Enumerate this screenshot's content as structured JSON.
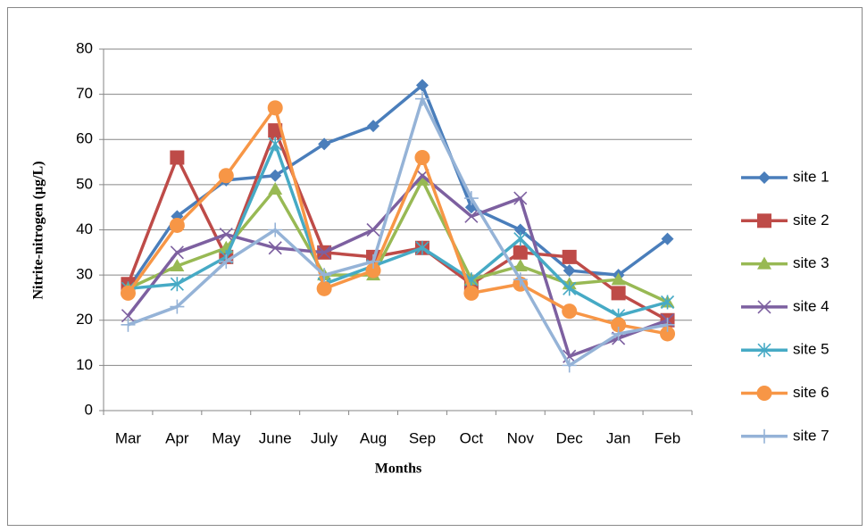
{
  "chart_data": {
    "type": "line",
    "x_label": "Months",
    "y_label": "Nitrite-nitrogen (µg/L)",
    "categories": [
      "Mar",
      "Apr",
      "May",
      "June",
      "July",
      "Aug",
      "Sep",
      "Oct",
      "Nov",
      "Dec",
      "Jan",
      "Feb"
    ],
    "series": [
      {
        "name": "site 1",
        "color": "#4a7ebb",
        "marker": "diamond",
        "values": [
          27,
          43,
          51,
          52,
          59,
          63,
          72,
          45,
          40,
          31,
          30,
          38
        ]
      },
      {
        "name": "site 2",
        "color": "#be4b48",
        "marker": "square",
        "values": [
          28,
          56,
          34,
          62,
          35,
          34,
          36,
          28,
          35,
          34,
          26,
          20
        ]
      },
      {
        "name": "site 3",
        "color": "#98b954",
        "marker": "triangle",
        "values": [
          27,
          32,
          36,
          49,
          30,
          30,
          51,
          29,
          32,
          28,
          29,
          24
        ]
      },
      {
        "name": "site 4",
        "color": "#7d60a0",
        "marker": "x",
        "values": [
          21,
          35,
          39,
          36,
          35,
          40,
          52,
          43,
          47,
          12,
          16,
          20
        ]
      },
      {
        "name": "site 5",
        "color": "#46aac5",
        "marker": "asterisk",
        "values": [
          27,
          28,
          34,
          59,
          28,
          32,
          36,
          29,
          38,
          27,
          21,
          24
        ]
      },
      {
        "name": "site 6",
        "color": "#f79646",
        "marker": "circle",
        "values": [
          26,
          41,
          52,
          67,
          27,
          31,
          56,
          26,
          28,
          22,
          19,
          17
        ]
      },
      {
        "name": "site 7",
        "color": "#95b3d7",
        "marker": "plus",
        "values": [
          19,
          23,
          33,
          40,
          30,
          33,
          69,
          47,
          29,
          10,
          17,
          19
        ]
      }
    ],
    "ylim": [
      0,
      80
    ],
    "yticks": [
      0,
      10,
      20,
      30,
      40,
      50,
      60,
      70,
      80
    ],
    "grid": true,
    "legend": "right"
  }
}
